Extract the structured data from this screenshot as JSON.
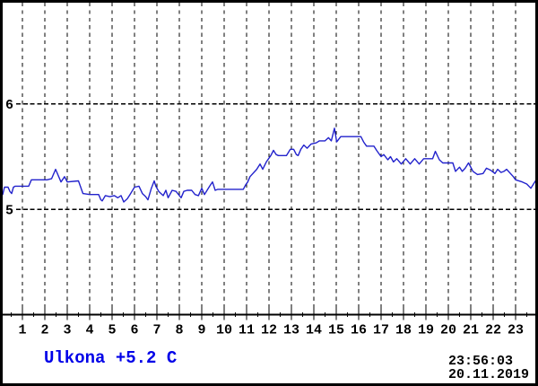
{
  "colors": {
    "background": "#ffffff",
    "border": "#000000",
    "grid": "#000000",
    "line": "#2222cc",
    "legend_text": "#0000e8",
    "status_text": "#000000"
  },
  "legend": {
    "label": "Ulkona +5.2 C"
  },
  "status": {
    "time": "23:56:03",
    "date": "20.11.2019"
  },
  "chart_data": {
    "type": "line",
    "title": "",
    "xlabel": "",
    "ylabel": "",
    "x_range": [
      0,
      24
    ],
    "y_range": [
      4,
      7
    ],
    "x_major_tick_step": 1,
    "x_minor_tick_step": 0.5,
    "x_tick_labels": [
      "1",
      "2",
      "3",
      "4",
      "5",
      "6",
      "7",
      "8",
      "9",
      "10",
      "11",
      "12",
      "13",
      "14",
      "15",
      "16",
      "17",
      "18",
      "19",
      "20",
      "21",
      "22",
      "23"
    ],
    "y_gridlines": [
      {
        "value": 5,
        "label": "5"
      },
      {
        "value": 6,
        "label": "6"
      }
    ],
    "grid": "dashed",
    "legend_position": "bottom-left",
    "series": [
      {
        "name": "Ulkona",
        "points": [
          [
            0.12,
            5.14
          ],
          [
            0.2,
            5.21
          ],
          [
            0.36,
            5.21
          ],
          [
            0.44,
            5.17
          ],
          [
            0.52,
            5.15
          ],
          [
            0.6,
            5.21
          ],
          [
            0.68,
            5.22
          ],
          [
            1.28,
            5.22
          ],
          [
            1.4,
            5.28
          ],
          [
            2.1,
            5.28
          ],
          [
            2.3,
            5.29
          ],
          [
            2.48,
            5.38
          ],
          [
            2.6,
            5.32
          ],
          [
            2.72,
            5.26
          ],
          [
            2.88,
            5.31
          ],
          [
            3.0,
            5.26
          ],
          [
            3.5,
            5.27
          ],
          [
            3.6,
            5.21
          ],
          [
            3.7,
            5.15
          ],
          [
            4.0,
            5.14
          ],
          [
            4.4,
            5.14
          ],
          [
            4.5,
            5.09
          ],
          [
            4.56,
            5.08
          ],
          [
            4.7,
            5.13
          ],
          [
            4.9,
            5.12
          ],
          [
            5.1,
            5.13
          ],
          [
            5.25,
            5.11
          ],
          [
            5.4,
            5.13
          ],
          [
            5.52,
            5.07
          ],
          [
            5.68,
            5.1
          ],
          [
            5.8,
            5.14
          ],
          [
            6.0,
            5.21
          ],
          [
            6.2,
            5.22
          ],
          [
            6.35,
            5.15
          ],
          [
            6.5,
            5.12
          ],
          [
            6.6,
            5.09
          ],
          [
            6.75,
            5.2
          ],
          [
            6.88,
            5.27
          ],
          [
            6.95,
            5.22
          ],
          [
            7.08,
            5.17
          ],
          [
            7.28,
            5.13
          ],
          [
            7.4,
            5.18
          ],
          [
            7.5,
            5.11
          ],
          [
            7.68,
            5.18
          ],
          [
            7.85,
            5.17
          ],
          [
            8.08,
            5.11
          ],
          [
            8.2,
            5.17
          ],
          [
            8.35,
            5.18
          ],
          [
            8.55,
            5.18
          ],
          [
            8.7,
            5.14
          ],
          [
            8.85,
            5.13
          ],
          [
            9.0,
            5.2
          ],
          [
            9.12,
            5.14
          ],
          [
            9.35,
            5.22
          ],
          [
            9.48,
            5.26
          ],
          [
            9.6,
            5.18
          ],
          [
            9.72,
            5.19
          ],
          [
            10.85,
            5.19
          ],
          [
            10.95,
            5.23
          ],
          [
            11.05,
            5.26
          ],
          [
            11.15,
            5.31
          ],
          [
            11.45,
            5.38
          ],
          [
            11.6,
            5.43
          ],
          [
            11.72,
            5.38
          ],
          [
            11.88,
            5.45
          ],
          [
            12.08,
            5.51
          ],
          [
            12.2,
            5.56
          ],
          [
            12.32,
            5.52
          ],
          [
            12.42,
            5.51
          ],
          [
            12.78,
            5.51
          ],
          [
            12.95,
            5.57
          ],
          [
            13.1,
            5.57
          ],
          [
            13.22,
            5.52
          ],
          [
            13.3,
            5.51
          ],
          [
            13.42,
            5.57
          ],
          [
            13.55,
            5.61
          ],
          [
            13.7,
            5.58
          ],
          [
            13.88,
            5.62
          ],
          [
            14.1,
            5.63
          ],
          [
            14.25,
            5.65
          ],
          [
            14.5,
            5.65
          ],
          [
            14.65,
            5.68
          ],
          [
            14.78,
            5.65
          ],
          [
            14.92,
            5.77
          ],
          [
            15.02,
            5.64
          ],
          [
            15.2,
            5.69
          ],
          [
            16.1,
            5.69
          ],
          [
            16.22,
            5.64
          ],
          [
            16.35,
            5.6
          ],
          [
            16.68,
            5.6
          ],
          [
            16.8,
            5.56
          ],
          [
            17.0,
            5.5
          ],
          [
            17.12,
            5.52
          ],
          [
            17.3,
            5.47
          ],
          [
            17.42,
            5.5
          ],
          [
            17.55,
            5.45
          ],
          [
            17.7,
            5.48
          ],
          [
            17.9,
            5.43
          ],
          [
            18.1,
            5.48
          ],
          [
            18.3,
            5.43
          ],
          [
            18.5,
            5.48
          ],
          [
            18.7,
            5.43
          ],
          [
            18.9,
            5.48
          ],
          [
            19.3,
            5.48
          ],
          [
            19.42,
            5.55
          ],
          [
            19.6,
            5.47
          ],
          [
            19.75,
            5.44
          ],
          [
            20.2,
            5.44
          ],
          [
            20.32,
            5.36
          ],
          [
            20.5,
            5.4
          ],
          [
            20.62,
            5.36
          ],
          [
            20.75,
            5.39
          ],
          [
            20.9,
            5.44
          ],
          [
            21.1,
            5.36
          ],
          [
            21.3,
            5.33
          ],
          [
            21.55,
            5.34
          ],
          [
            21.7,
            5.39
          ],
          [
            21.9,
            5.37
          ],
          [
            22.08,
            5.34
          ],
          [
            22.2,
            5.38
          ],
          [
            22.35,
            5.35
          ],
          [
            22.48,
            5.36
          ],
          [
            22.6,
            5.38
          ],
          [
            22.9,
            5.31
          ],
          [
            23.0,
            5.28
          ],
          [
            23.3,
            5.26
          ],
          [
            23.5,
            5.24
          ],
          [
            23.68,
            5.2
          ],
          [
            23.92,
            5.28
          ]
        ]
      }
    ]
  }
}
